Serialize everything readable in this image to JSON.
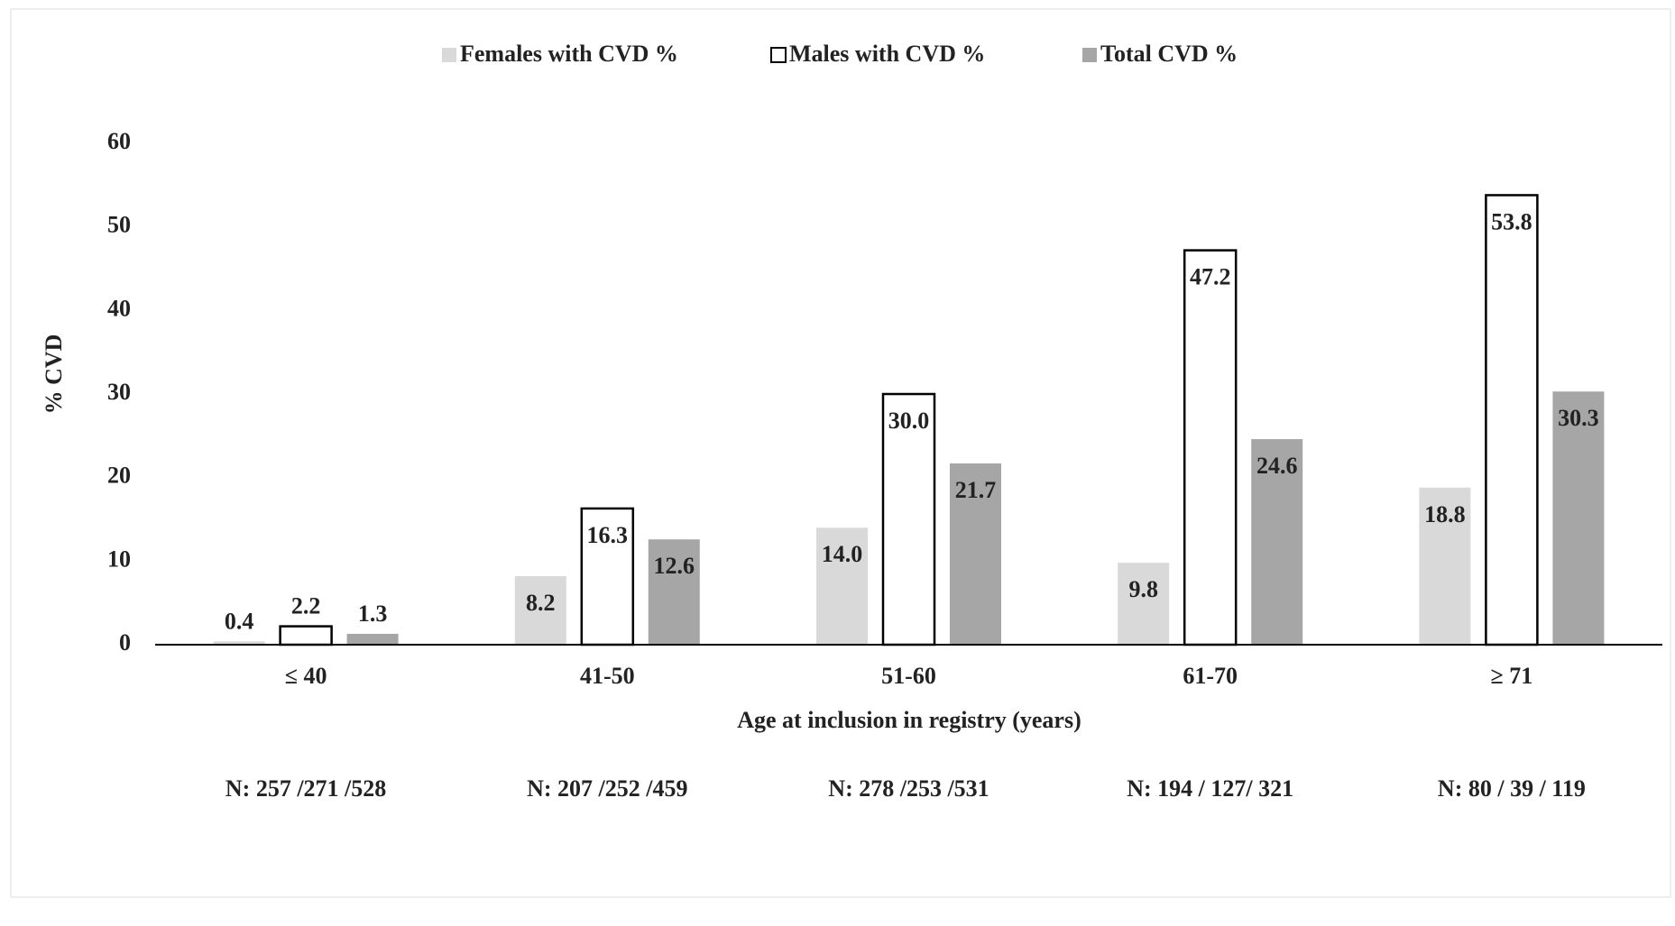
{
  "chart_data": {
    "type": "bar",
    "categories": [
      "≤  40",
      "41-50",
      "51-60",
      "61-70",
      "≥  71"
    ],
    "series": [
      {
        "name": "Females with CVD %",
        "color": "#d9d9d9",
        "values": [
          0.4,
          8.2,
          14.0,
          9.8,
          18.8
        ],
        "value_labels": [
          "0.4",
          "8.2",
          "14.0",
          "9.8",
          "18.8"
        ]
      },
      {
        "name": "Males with CVD %",
        "color": "#ffffff",
        "values": [
          2.2,
          16.3,
          30.0,
          47.2,
          53.8
        ],
        "value_labels": [
          "2.2",
          "16.3",
          "30.0",
          "47.2",
          "53.8"
        ]
      },
      {
        "name": "Total CVD %",
        "color": "#a6a6a6",
        "values": [
          1.3,
          12.6,
          21.7,
          24.6,
          30.3
        ],
        "value_labels": [
          "1.3",
          "12.6",
          "21.7",
          "24.6",
          "30.3"
        ]
      }
    ],
    "ylim": [
      0,
      60
    ],
    "yticks": [
      0,
      10,
      20,
      30,
      40,
      50,
      60
    ],
    "y_label": "% CVD",
    "x_label": "Age at inclusion in registry (years)",
    "annotations": [
      "N:   257 /271 /528",
      "N:  207 /252 /459",
      "N: 278 /253 /531",
      "N: 194 / 127/ 321",
      "N:  80 / 39 / 119"
    ],
    "legend": "top"
  }
}
